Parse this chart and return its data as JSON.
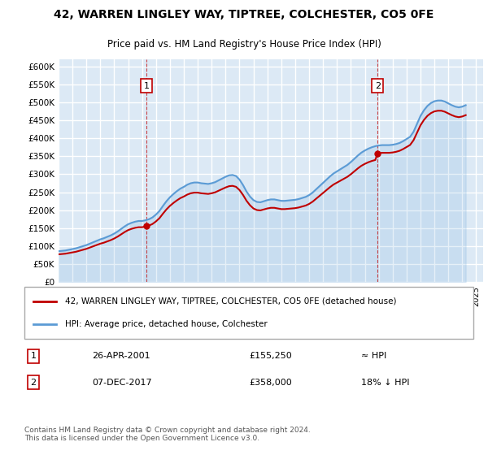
{
  "title": "42, WARREN LINGLEY WAY, TIPTREE, COLCHESTER, CO5 0FE",
  "subtitle": "Price paid vs. HM Land Registry's House Price Index (HPI)",
  "ylabel_ticks": [
    "£0",
    "£50K",
    "£100K",
    "£150K",
    "£200K",
    "£250K",
    "£300K",
    "£350K",
    "£400K",
    "£450K",
    "£500K",
    "£550K",
    "£600K"
  ],
  "ylim": [
    0,
    620000
  ],
  "xlim_start": 1995,
  "xlim_end": 2025.5,
  "bg_color": "#dce9f5",
  "plot_bg": "#dce9f5",
  "grid_color": "#ffffff",
  "hpi_color": "#5b9bd5",
  "price_color": "#c00000",
  "marker1_x": 2001.32,
  "marker1_y": 155250,
  "marker2_x": 2017.92,
  "marker2_y": 358000,
  "legend_line1": "42, WARREN LINGLEY WAY, TIPTREE, COLCHESTER, CO5 0FE (detached house)",
  "legend_line2": "HPI: Average price, detached house, Colchester",
  "annotation1_label": "1",
  "annotation1_date": "26-APR-2001",
  "annotation1_price": "£155,250",
  "annotation1_hpi": "≈ HPI",
  "annotation2_label": "2",
  "annotation2_date": "07-DEC-2017",
  "annotation2_price": "£358,000",
  "annotation2_hpi": "18% ↓ HPI",
  "footer": "Contains HM Land Registry data © Crown copyright and database right 2024.\nThis data is licensed under the Open Government Licence v3.0.",
  "hpi_data_years": [
    1995,
    1995.25,
    1995.5,
    1995.75,
    1996,
    1996.25,
    1996.5,
    1996.75,
    1997,
    1997.25,
    1997.5,
    1997.75,
    1998,
    1998.25,
    1998.5,
    1998.75,
    1999,
    1999.25,
    1999.5,
    1999.75,
    2000,
    2000.25,
    2000.5,
    2000.75,
    2001,
    2001.25,
    2001.5,
    2001.75,
    2002,
    2002.25,
    2002.5,
    2002.75,
    2003,
    2003.25,
    2003.5,
    2003.75,
    2004,
    2004.25,
    2004.5,
    2004.75,
    2005,
    2005.25,
    2005.5,
    2005.75,
    2006,
    2006.25,
    2006.5,
    2006.75,
    2007,
    2007.25,
    2007.5,
    2007.75,
    2008,
    2008.25,
    2008.5,
    2008.75,
    2009,
    2009.25,
    2009.5,
    2009.75,
    2010,
    2010.25,
    2010.5,
    2010.75,
    2011,
    2011.25,
    2011.5,
    2011.75,
    2012,
    2012.25,
    2012.5,
    2012.75,
    2013,
    2013.25,
    2013.5,
    2013.75,
    2014,
    2014.25,
    2014.5,
    2014.75,
    2015,
    2015.25,
    2015.5,
    2015.75,
    2016,
    2016.25,
    2016.5,
    2016.75,
    2017,
    2017.25,
    2017.5,
    2017.75,
    2018,
    2018.25,
    2018.5,
    2018.75,
    2019,
    2019.25,
    2019.5,
    2019.75,
    2020,
    2020.25,
    2020.5,
    2020.75,
    2021,
    2021.25,
    2021.5,
    2021.75,
    2022,
    2022.25,
    2022.5,
    2022.75,
    2023,
    2023.25,
    2023.5,
    2023.75,
    2024,
    2024.25
  ],
  "hpi_data_values": [
    86000,
    87000,
    88000,
    90000,
    92000,
    94000,
    97000,
    100000,
    103000,
    107000,
    111000,
    115000,
    119000,
    122000,
    126000,
    130000,
    135000,
    141000,
    148000,
    155000,
    161000,
    165000,
    168000,
    170000,
    170000,
    172000,
    175000,
    180000,
    188000,
    198000,
    212000,
    225000,
    236000,
    245000,
    253000,
    260000,
    265000,
    271000,
    275000,
    277000,
    277000,
    275000,
    274000,
    273000,
    275000,
    278000,
    283000,
    288000,
    293000,
    297000,
    298000,
    295000,
    285000,
    270000,
    252000,
    238000,
    228000,
    223000,
    222000,
    225000,
    228000,
    230000,
    230000,
    228000,
    226000,
    226000,
    227000,
    228000,
    229000,
    231000,
    234000,
    237000,
    242000,
    249000,
    258000,
    267000,
    276000,
    285000,
    294000,
    302000,
    308000,
    314000,
    320000,
    326000,
    334000,
    343000,
    352000,
    360000,
    366000,
    371000,
    375000,
    378000,
    380000,
    381000,
    381000,
    381000,
    382000,
    384000,
    387000,
    392000,
    398000,
    404000,
    418000,
    440000,
    462000,
    478000,
    490000,
    498000,
    503000,
    505000,
    505000,
    502000,
    497000,
    492000,
    488000,
    486000,
    488000,
    492000
  ],
  "price_paid_years": [
    2001.32,
    2017.92
  ],
  "price_paid_values": [
    155250,
    358000
  ]
}
